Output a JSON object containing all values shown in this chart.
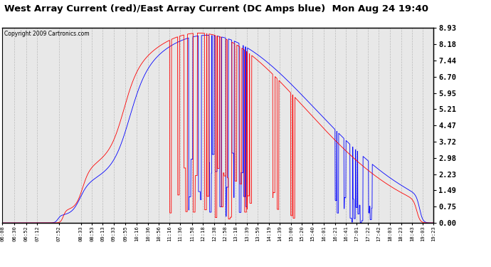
{
  "title": "West Array Current (red)/East Array Current (DC Amps blue)  Mon Aug 24 19:40",
  "copyright": "Copyright 2009 Cartronics.com",
  "ylabel_right_ticks": [
    0.0,
    0.75,
    1.49,
    2.23,
    2.98,
    3.72,
    4.47,
    5.21,
    5.95,
    6.7,
    7.44,
    8.18,
    8.93
  ],
  "ymin": 0.0,
  "ymax": 8.93,
  "line_color_west": "#ff0000",
  "line_color_east": "#0000ff",
  "bg_color": "#ffffff",
  "grid_color": "#bbbbbb",
  "x_tick_labels": [
    "06:08",
    "06:30",
    "06:52",
    "07:12",
    "07:52",
    "08:33",
    "08:53",
    "09:13",
    "09:33",
    "09:55",
    "10:16",
    "10:36",
    "10:56",
    "11:16",
    "11:36",
    "11:58",
    "12:18",
    "12:38",
    "12:58",
    "13:18",
    "13:39",
    "13:59",
    "14:19",
    "14:39",
    "15:00",
    "15:20",
    "15:40",
    "16:01",
    "16:21",
    "16:41",
    "17:01",
    "17:22",
    "17:42",
    "18:03",
    "18:23",
    "18:43",
    "19:03",
    "19:23"
  ]
}
